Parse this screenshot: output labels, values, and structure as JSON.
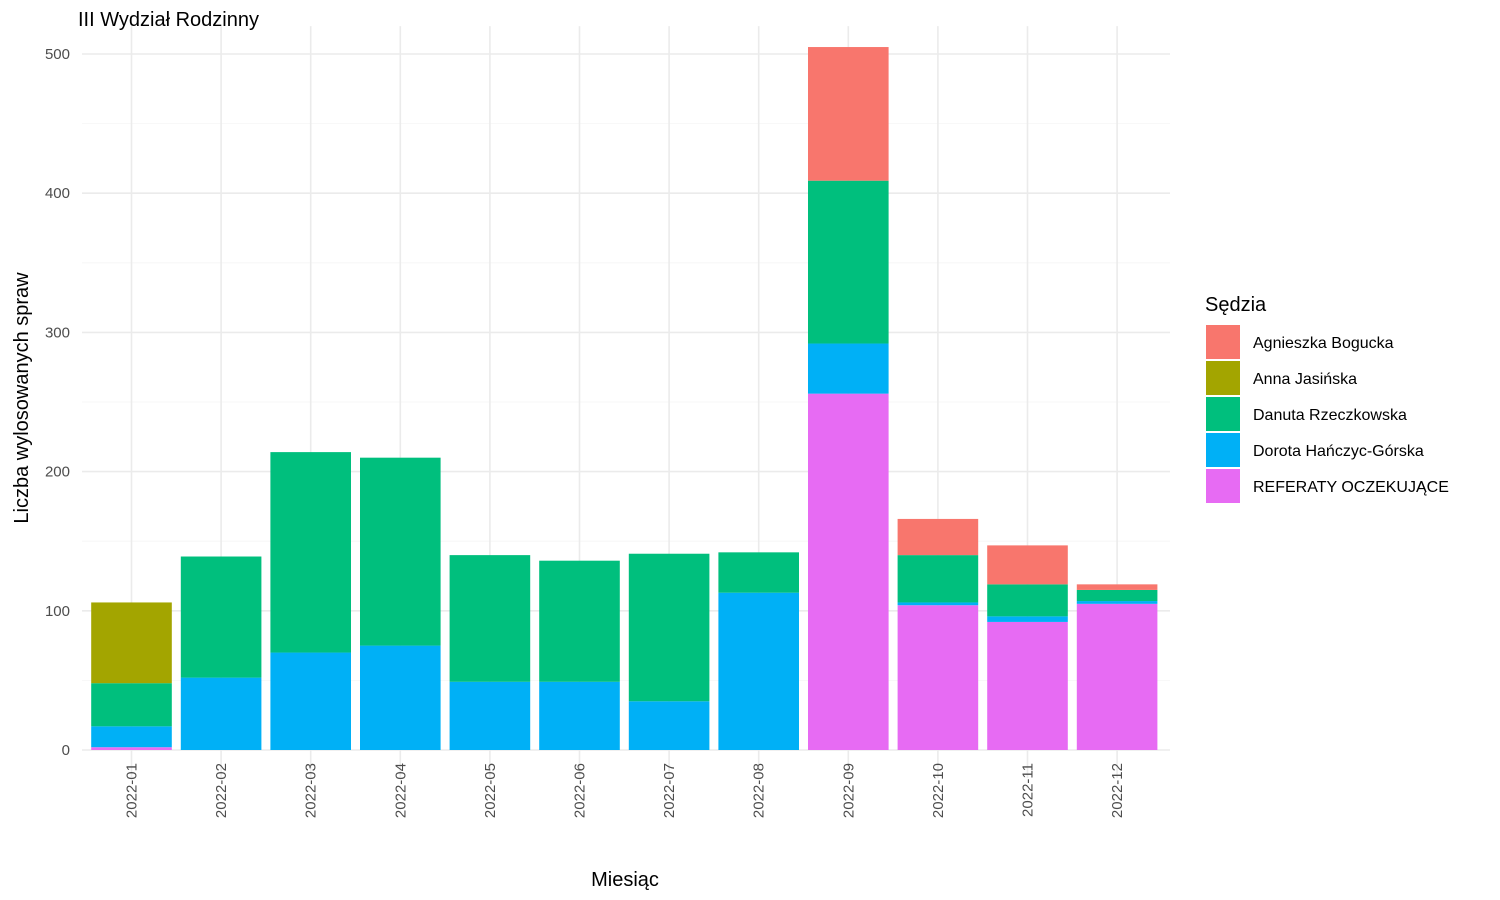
{
  "chart_data": {
    "type": "bar",
    "stacked": true,
    "title": "III Wydział Rodzinny",
    "xlabel": "Miesiąc",
    "ylabel": "Liczba wylosowanych spraw",
    "ylim": [
      -20,
      520
    ],
    "yticks": [
      0,
      100,
      200,
      300,
      400,
      500
    ],
    "grid": true,
    "legend_title": "Sędzia",
    "legend_position": "right",
    "categories": [
      "2022-01",
      "2022-02",
      "2022-03",
      "2022-04",
      "2022-05",
      "2022-06",
      "2022-07",
      "2022-08",
      "2022-09",
      "2022-10",
      "2022-11",
      "2022-12"
    ],
    "series": [
      {
        "name": "Agnieszka Bogucka",
        "color": "#F8766D",
        "values": [
          0,
          0,
          0,
          0,
          0,
          0,
          0,
          0,
          96,
          26,
          28,
          4
        ]
      },
      {
        "name": "Anna Jasińska",
        "color": "#A3A500",
        "values": [
          58,
          0,
          0,
          0,
          0,
          0,
          0,
          0,
          0,
          0,
          0,
          0
        ]
      },
      {
        "name": "Danuta Rzeczkowska",
        "color": "#00BF7D",
        "values": [
          31,
          87,
          144,
          135,
          91,
          87,
          106,
          29,
          117,
          34,
          23,
          8
        ]
      },
      {
        "name": "Dorota Hańczyc-Górska",
        "color": "#00B0F6",
        "values": [
          15,
          52,
          70,
          75,
          49,
          49,
          35,
          113,
          36,
          2,
          4,
          2
        ]
      },
      {
        "name": "REFERATY OCZEKUJĄCE",
        "color": "#E76BF3",
        "values": [
          2,
          0,
          0,
          0,
          0,
          0,
          0,
          0,
          256,
          104,
          92,
          105
        ]
      }
    ]
  }
}
